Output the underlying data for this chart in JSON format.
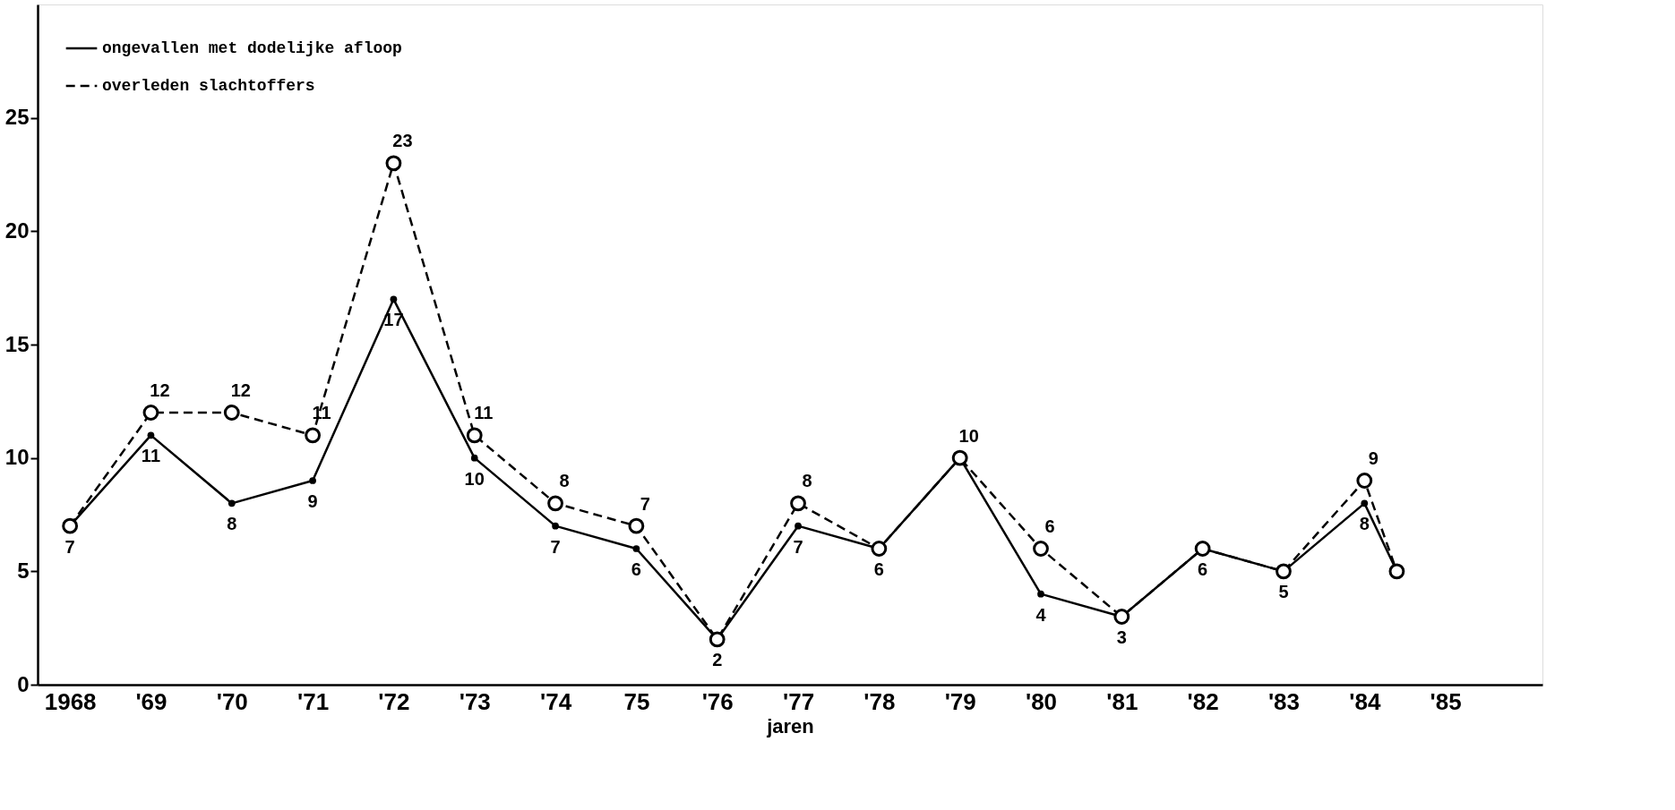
{
  "chart_data": {
    "type": "line",
    "xlabel": "jaren",
    "xlim": [
      1967.6,
      1986.2
    ],
    "ylim": [
      0,
      30
    ],
    "yticks": [
      0,
      5,
      10,
      15,
      20,
      25
    ],
    "xticks": [
      {
        "value": 1968,
        "label": "1968"
      },
      {
        "value": 1969,
        "label": "'69"
      },
      {
        "value": 1970,
        "label": "'70"
      },
      {
        "value": 1971,
        "label": "'71"
      },
      {
        "value": 1972,
        "label": "'72"
      },
      {
        "value": 1973,
        "label": "'73"
      },
      {
        "value": 1974,
        "label": "'74"
      },
      {
        "value": 1975,
        "label": "75"
      },
      {
        "value": 1976,
        "label": "'76"
      },
      {
        "value": 1977,
        "label": "'77"
      },
      {
        "value": 1978,
        "label": "'78"
      },
      {
        "value": 1979,
        "label": "'79"
      },
      {
        "value": 1980,
        "label": "'80"
      },
      {
        "value": 1981,
        "label": "'81"
      },
      {
        "value": 1982,
        "label": "'82"
      },
      {
        "value": 1983,
        "label": "'83"
      },
      {
        "value": 1984,
        "label": "'84"
      },
      {
        "value": 1985,
        "label": "'85"
      }
    ],
    "x": [
      1968,
      1969,
      1970,
      1971,
      1972,
      1973,
      1974,
      1975,
      1976,
      1977,
      1978,
      1979,
      1980,
      1981,
      1982,
      1983,
      1984,
      1984.4
    ],
    "grid": false,
    "legend": "top left",
    "marker": "circle",
    "series": [
      {
        "name": "ongevallen met dodelijke afloop",
        "color": "#000000",
        "line_style": "solid",
        "values": [
          7,
          11,
          8,
          9,
          17,
          10,
          7,
          6,
          2,
          7,
          6,
          10,
          4,
          3,
          6,
          5,
          8,
          5
        ],
        "value_labels": [
          "7",
          "11",
          "8",
          "9",
          "17",
          "10",
          "7",
          "6",
          "2",
          "7",
          "6",
          null,
          "4",
          "3",
          "6",
          "5",
          "8",
          null
        ]
      },
      {
        "name": "overleden slachtoffers",
        "color": "#000000",
        "line_style": "dashed",
        "values": [
          7,
          12,
          12,
          11,
          23,
          11,
          8,
          7,
          2,
          8,
          6,
          10,
          6,
          3,
          6,
          5,
          9,
          5
        ],
        "value_labels": [
          null,
          "12",
          "12",
          "11",
          "23",
          "11",
          "8",
          "7",
          null,
          "8",
          null,
          "10",
          "6",
          null,
          null,
          null,
          "9",
          null
        ]
      }
    ]
  }
}
